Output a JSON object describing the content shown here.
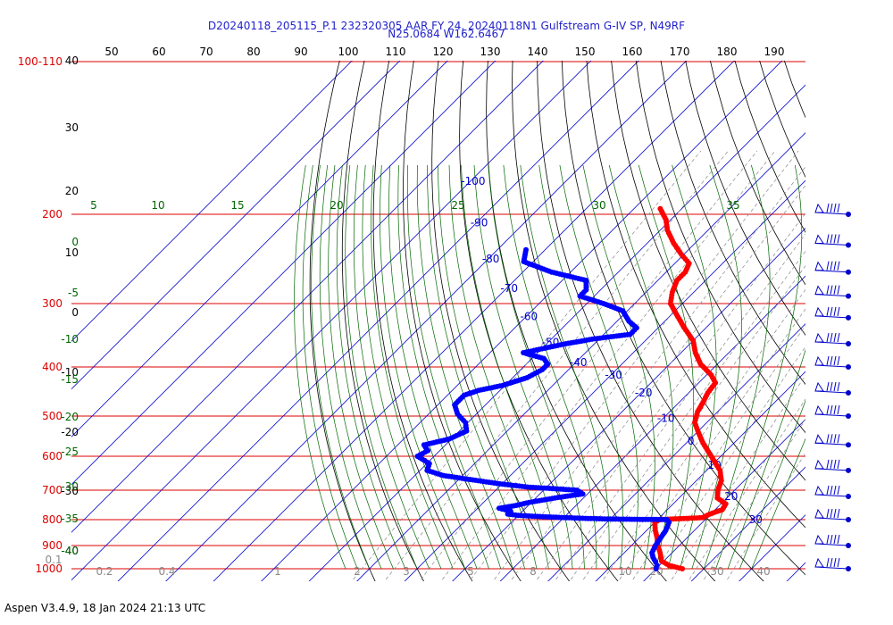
{
  "title_line1": "D20240118_205115_P.1 232320305 AAR FY 24, 20240118N1 Gulfstream G-IV SP, N49RF",
  "title_line2": "N25.0684 W162.6467",
  "footer": "Aspen V3.4.9, 18 Jan 2024  21:13 UTC",
  "colors": {
    "isobar": "#dd0000",
    "isotherm": "#0000cc",
    "dry_adiabat": "#000000",
    "moist_adiabat": "#006600",
    "mixing_ratio": "#888888",
    "temperature": "#ff0000",
    "dewpoint": "#0000ff",
    "wind_barb": "#0000cc",
    "fahrenheit_label": "#000000",
    "theta_label": "#000000"
  },
  "chart_data": {
    "type": "skew-t log-p",
    "y_axis": {
      "quantity": "pressure (hPa)",
      "scale": "log",
      "range": [
        1000,
        100
      ],
      "isobars": [
        1000,
        900,
        800,
        700,
        600,
        500,
        400,
        300,
        200,
        100
      ],
      "tick_labels": [
        "1000",
        "900",
        "800",
        "700",
        "600",
        "500",
        "400",
        "300",
        "200",
        "100-110"
      ]
    },
    "isotherm_labels_c": [
      "-100",
      "-90",
      "-80",
      "-70",
      "-60",
      "-50",
      "-40",
      "-30",
      "-20",
      "-10",
      "0",
      "10",
      "20",
      "30"
    ],
    "fahrenheit_top_labels": [
      "50",
      "60",
      "70",
      "80",
      "90",
      "100",
      "110",
      "120",
      "130",
      "140",
      "150",
      "160",
      "170",
      "180",
      "190"
    ],
    "left_black_labels": [
      "40",
      "30",
      "20",
      "10",
      "0",
      "-10",
      "-20",
      "-30",
      "-40"
    ],
    "left_green_labels": [
      "0",
      "-5",
      "-10",
      "-15",
      "-20",
      "-25",
      "-30",
      "-35",
      "-40"
    ],
    "moist_adiabat_labels": [
      "5",
      "10",
      "15",
      "20",
      "25",
      "30",
      "35"
    ],
    "mixing_ratio_labels": [
      "0.1",
      "0.2",
      "0.4",
      "1",
      "2",
      "3",
      "5",
      "8",
      "10",
      "20",
      "30",
      "40"
    ],
    "temperature_profile": [
      {
        "p": 1000,
        "t": 25.5
      },
      {
        "p": 985,
        "t": 22.0
      },
      {
        "p": 965,
        "t": 19.5
      },
      {
        "p": 930,
        "t": 17.5
      },
      {
        "p": 900,
        "t": 15.5
      },
      {
        "p": 870,
        "t": 13.8
      },
      {
        "p": 840,
        "t": 11.8
      },
      {
        "p": 810,
        "t": 10.0
      },
      {
        "p": 800,
        "t": 10.5
      },
      {
        "p": 793,
        "t": 19.0
      },
      {
        "p": 780,
        "t": 19.8
      },
      {
        "p": 765,
        "t": 21.5
      },
      {
        "p": 745,
        "t": 21.0
      },
      {
        "p": 725,
        "t": 18.0
      },
      {
        "p": 700,
        "t": 16.5
      },
      {
        "p": 670,
        "t": 15.2
      },
      {
        "p": 640,
        "t": 12.8
      },
      {
        "p": 600,
        "t": 8.0
      },
      {
        "p": 565,
        "t": 3.5
      },
      {
        "p": 540,
        "t": 0.5
      },
      {
        "p": 515,
        "t": -2.5
      },
      {
        "p": 490,
        "t": -4.2
      },
      {
        "p": 470,
        "t": -5.0
      },
      {
        "p": 450,
        "t": -6.0
      },
      {
        "p": 430,
        "t": -6.5
      },
      {
        "p": 415,
        "t": -9.0
      },
      {
        "p": 395,
        "t": -13.5
      },
      {
        "p": 375,
        "t": -17.0
      },
      {
        "p": 355,
        "t": -20.0
      },
      {
        "p": 335,
        "t": -24.5
      },
      {
        "p": 315,
        "t": -29.0
      },
      {
        "p": 300,
        "t": -32.5
      },
      {
        "p": 285,
        "t": -34.5
      },
      {
        "p": 270,
        "t": -36.0
      },
      {
        "p": 260,
        "t": -36.0
      },
      {
        "p": 250,
        "t": -37.0
      },
      {
        "p": 240,
        "t": -40.5
      },
      {
        "p": 228,
        "t": -44.5
      },
      {
        "p": 215,
        "t": -48.5
      },
      {
        "p": 205,
        "t": -51.0
      },
      {
        "p": 195,
        "t": -54.5
      }
    ],
    "dewpoint_profile": [
      {
        "p": 1000,
        "t": 20.0
      },
      {
        "p": 985,
        "t": 19.5
      },
      {
        "p": 970,
        "t": 18.5
      },
      {
        "p": 950,
        "t": 17.0
      },
      {
        "p": 930,
        "t": 15.8
      },
      {
        "p": 900,
        "t": 15.0
      },
      {
        "p": 870,
        "t": 14.5
      },
      {
        "p": 840,
        "t": 14.0
      },
      {
        "p": 810,
        "t": 13.0
      },
      {
        "p": 800,
        "t": 12.0
      },
      {
        "p": 798,
        "t": 0.0
      },
      {
        "p": 795,
        "t": -6.5
      },
      {
        "p": 790,
        "t": -14.0
      },
      {
        "p": 785,
        "t": -20.0
      },
      {
        "p": 780,
        "t": -22.5
      },
      {
        "p": 770,
        "t": -22.5
      },
      {
        "p": 760,
        "t": -25.5
      },
      {
        "p": 750,
        "t": -22.5
      },
      {
        "p": 740,
        "t": -20.5
      },
      {
        "p": 725,
        "t": -16.0
      },
      {
        "p": 712,
        "t": -11.0
      },
      {
        "p": 700,
        "t": -13.0
      },
      {
        "p": 690,
        "t": -24.0
      },
      {
        "p": 680,
        "t": -30.5
      },
      {
        "p": 668,
        "t": -37.0
      },
      {
        "p": 655,
        "t": -44.0
      },
      {
        "p": 640,
        "t": -48.5
      },
      {
        "p": 620,
        "t": -49.5
      },
      {
        "p": 600,
        "t": -53.5
      },
      {
        "p": 585,
        "t": -52.5
      },
      {
        "p": 570,
        "t": -54.5
      },
      {
        "p": 555,
        "t": -50.5
      },
      {
        "p": 535,
        "t": -48.5
      },
      {
        "p": 515,
        "t": -50.5
      },
      {
        "p": 495,
        "t": -54.0
      },
      {
        "p": 475,
        "t": -56.5
      },
      {
        "p": 455,
        "t": -56.5
      },
      {
        "p": 445,
        "t": -54.5
      },
      {
        "p": 435,
        "t": -50.5
      },
      {
        "p": 420,
        "t": -47.0
      },
      {
        "p": 405,
        "t": -45.5
      },
      {
        "p": 395,
        "t": -45.5
      },
      {
        "p": 385,
        "t": -47.5
      },
      {
        "p": 375,
        "t": -53.0
      },
      {
        "p": 360,
        "t": -46.0
      },
      {
        "p": 352,
        "t": -41.0
      },
      {
        "p": 345,
        "t": -34.5
      },
      {
        "p": 335,
        "t": -34.5
      },
      {
        "p": 325,
        "t": -37.5
      },
      {
        "p": 310,
        "t": -41.0
      },
      {
        "p": 300,
        "t": -46.5
      },
      {
        "p": 290,
        "t": -53.0
      },
      {
        "p": 282,
        "t": -53.0
      },
      {
        "p": 270,
        "t": -55.0
      },
      {
        "p": 260,
        "t": -64.0
      },
      {
        "p": 248,
        "t": -72.0
      },
      {
        "p": 235,
        "t": -74.0
      }
    ],
    "wind_barb_pressures": [
      200,
      230,
      260,
      290,
      320,
      360,
      400,
      450,
      500,
      570,
      640,
      720,
      800,
      900,
      1000
    ]
  }
}
